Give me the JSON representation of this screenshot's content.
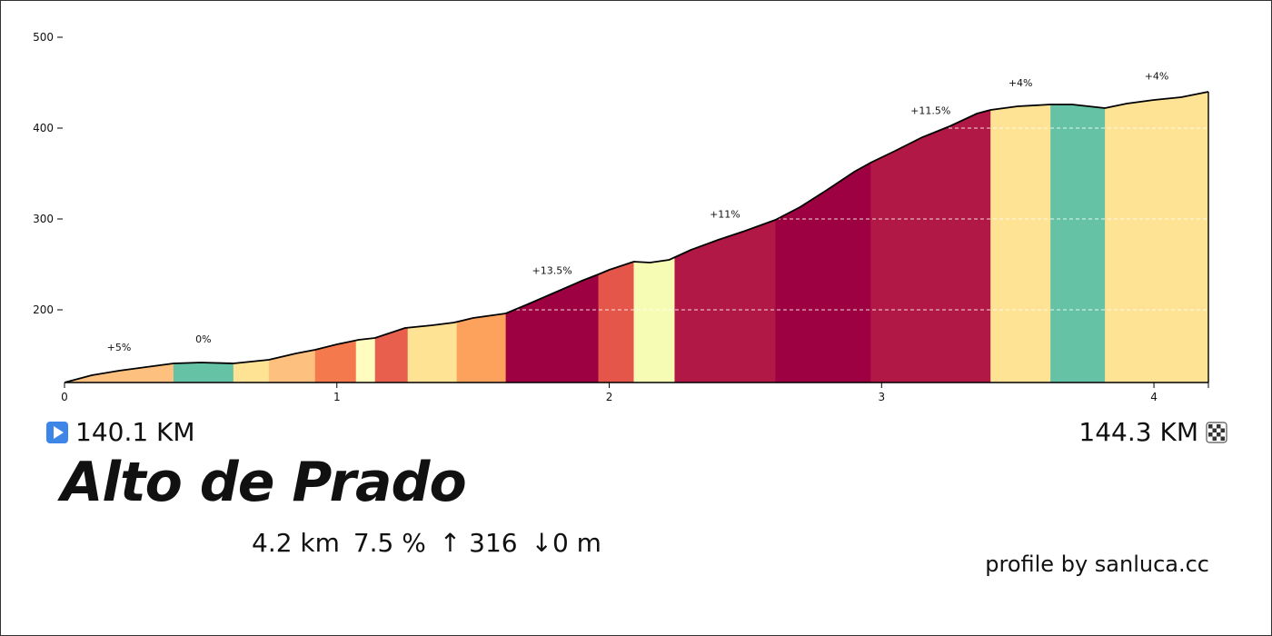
{
  "colors": {
    "outline": "#000000",
    "grid": "#ffffff",
    "start_icon": "#3d86e8"
  },
  "chart_data": {
    "type": "area",
    "title": "",
    "xlabel": "",
    "ylabel": "",
    "xlim": [
      0,
      4.2
    ],
    "ylim": [
      120,
      520
    ],
    "x_ticks": [
      0,
      1,
      2,
      3,
      4
    ],
    "x_tick_labels": [
      "0",
      "1",
      "2",
      "3",
      "4"
    ],
    "y_ticks": [
      200,
      300,
      400,
      500
    ],
    "y_tick_labels": [
      "200",
      "300",
      "400",
      "500"
    ],
    "grid": "horizontal dashed white lines over the profile",
    "legend": "none",
    "profile": {
      "x": [
        0,
        0.1,
        0.2,
        0.3,
        0.4,
        0.5,
        0.62,
        0.75,
        0.85,
        0.92,
        1.0,
        1.08,
        1.14,
        1.25,
        1.35,
        1.43,
        1.5,
        1.62,
        1.7,
        1.8,
        1.9,
        1.96,
        2.0,
        2.09,
        2.15,
        2.22,
        2.3,
        2.4,
        2.5,
        2.61,
        2.7,
        2.8,
        2.9,
        2.96,
        3.05,
        3.15,
        3.25,
        3.35,
        3.4,
        3.5,
        3.62,
        3.7,
        3.82,
        3.9,
        4.0,
        4.1,
        4.2
      ],
      "y": [
        120,
        128,
        133,
        137,
        141,
        142,
        141,
        145,
        152,
        156,
        162,
        167,
        169,
        180,
        183,
        186,
        191,
        196,
        206,
        219,
        232,
        239,
        244,
        253,
        252,
        255,
        266,
        277,
        287,
        299,
        313,
        332,
        352,
        362,
        375,
        390,
        402,
        416,
        420,
        424,
        426,
        426,
        422,
        427,
        431,
        434,
        440
      ]
    },
    "segments": [
      {
        "x0": 0.0,
        "x1": 0.4,
        "color": "#fdc07e",
        "label": "+5%"
      },
      {
        "x0": 0.4,
        "x1": 0.62,
        "color": "#66c2a5",
        "label": "0%"
      },
      {
        "x0": 0.62,
        "x1": 0.75,
        "color": "#fee394",
        "label": ""
      },
      {
        "x0": 0.75,
        "x1": 0.92,
        "color": "#fdc07e",
        "label": ""
      },
      {
        "x0": 0.92,
        "x1": 1.07,
        "color": "#f47a4e",
        "label": ""
      },
      {
        "x0": 1.07,
        "x1": 1.14,
        "color": "#fffcc0",
        "label": ""
      },
      {
        "x0": 1.14,
        "x1": 1.26,
        "color": "#e8604d",
        "label": ""
      },
      {
        "x0": 1.26,
        "x1": 1.44,
        "color": "#fee394",
        "label": ""
      },
      {
        "x0": 1.44,
        "x1": 1.62,
        "color": "#fda25c",
        "label": ""
      },
      {
        "x0": 1.62,
        "x1": 1.96,
        "color": "#9e0142",
        "label": "+13.5%"
      },
      {
        "x0": 1.96,
        "x1": 2.09,
        "color": "#e4554a",
        "label": ""
      },
      {
        "x0": 2.09,
        "x1": 2.24,
        "color": "#f7fcb4",
        "label": ""
      },
      {
        "x0": 2.24,
        "x1": 2.61,
        "color": "#b11846",
        "label": "+11%"
      },
      {
        "x0": 2.61,
        "x1": 2.96,
        "color": "#9e0142",
        "label": ""
      },
      {
        "x0": 2.96,
        "x1": 3.4,
        "color": "#b11846",
        "label": "+11.5%"
      },
      {
        "x0": 3.4,
        "x1": 3.62,
        "color": "#fee394",
        "label": "+4%"
      },
      {
        "x0": 3.62,
        "x1": 3.82,
        "color": "#66c2a5",
        "label": ""
      },
      {
        "x0": 3.82,
        "x1": 4.2,
        "color": "#fee394",
        "label": "+4%"
      }
    ]
  },
  "start": {
    "icon": "play-icon",
    "label": "140.1 KM"
  },
  "end": {
    "icon": "checkered-flag-icon",
    "label": "144.3 KM"
  },
  "climb_name": "Alto de Prado",
  "stats": {
    "distance": "4.2 km",
    "gradient": "7.5 %",
    "ascent": "↑ 316",
    "descent": "↓0 m"
  },
  "credit": "profile by sanluca.cc"
}
